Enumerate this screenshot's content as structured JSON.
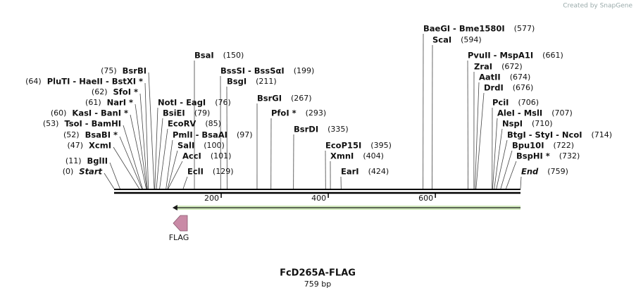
{
  "watermark": "Created by SnapGene",
  "title": "FcD265A-FLAG",
  "subtitle": "759 bp",
  "ruler": {
    "lim": [
      0,
      759
    ],
    "ticks": [
      200,
      400,
      600
    ]
  },
  "feature": {
    "name": "FLAG",
    "start": 109,
    "end": 759,
    "direction": "reverse",
    "color": "#7fc242",
    "icon_color": "#c98aa6"
  },
  "sites": [
    {
      "name": "BaeGI  - Bme1580I",
      "position": 577,
      "label": "(577)"
    },
    {
      "name": "ScaI",
      "position": 594,
      "label": "(594)"
    },
    {
      "name": "BsaI",
      "position": 150,
      "label": "(150)"
    },
    {
      "name": "PvuII  - MspA1I",
      "position": 661,
      "label": "(661)"
    },
    {
      "name": "ZraI",
      "position": 672,
      "label": "(672)"
    },
    {
      "name": "BsrBI",
      "position": 75,
      "label": "(75)"
    },
    {
      "name": "BssSI  - BssSαI",
      "position": 199,
      "label": "(199)"
    },
    {
      "name": "AatII",
      "position": 674,
      "label": "(674)"
    },
    {
      "name": "PluTI  - HaeII  - BstXI *",
      "position": 64,
      "label": "(64)"
    },
    {
      "name": "BsgI",
      "position": 211,
      "label": "(211)"
    },
    {
      "name": "DrdI",
      "position": 676,
      "label": "(676)"
    },
    {
      "name": "SfoI *",
      "position": 62,
      "label": "(62)"
    },
    {
      "name": "BsrGI",
      "position": 267,
      "label": "(267)"
    },
    {
      "name": "NarI *",
      "position": 61,
      "label": "(61)"
    },
    {
      "name": "NotI  - EagI",
      "position": 76,
      "label": "(76)"
    },
    {
      "name": "PciI",
      "position": 706,
      "label": "(706)"
    },
    {
      "name": "KasI  - BanI *",
      "position": 60,
      "label": "(60)"
    },
    {
      "name": "BsiEI",
      "position": 79,
      "label": "(79)"
    },
    {
      "name": "PfoI *",
      "position": 293,
      "label": "(293)"
    },
    {
      "name": "AleI  - MslI",
      "position": 707,
      "label": "(707)"
    },
    {
      "name": "TsoI  - BamHI",
      "position": 53,
      "label": "(53)"
    },
    {
      "name": "EcoRV",
      "position": 85,
      "label": "(85)"
    },
    {
      "name": "NspI",
      "position": 710,
      "label": "(710)"
    },
    {
      "name": "BsrDI",
      "position": 335,
      "label": "(335)"
    },
    {
      "name": "BsaBI *",
      "position": 52,
      "label": "(52)"
    },
    {
      "name": "PmlI  - BsaAI",
      "position": 97,
      "label": "(97)"
    },
    {
      "name": "BtgI  - StyI  - NcoI",
      "position": 714,
      "label": "(714)"
    },
    {
      "name": "XcmI",
      "position": 47,
      "label": "(47)"
    },
    {
      "name": "SalI",
      "position": 100,
      "label": "(100)"
    },
    {
      "name": "EcoP15I",
      "position": 395,
      "label": "(395)"
    },
    {
      "name": "Bpu10I",
      "position": 722,
      "label": "(722)"
    },
    {
      "name": "AccI",
      "position": 101,
      "label": "(101)"
    },
    {
      "name": "XmnI",
      "position": 404,
      "label": "(404)"
    },
    {
      "name": "BspHI *",
      "position": 732,
      "label": "(732)"
    },
    {
      "name": "BglII",
      "position": 11,
      "label": "(11)"
    },
    {
      "name": "Start",
      "position": 0,
      "label": "(0)"
    },
    {
      "name": "EclI",
      "position": 129,
      "label": "(129)"
    },
    {
      "name": "EarI",
      "position": 424,
      "label": "(424)"
    },
    {
      "name": "End",
      "position": 759,
      "label": "(759)"
    }
  ]
}
